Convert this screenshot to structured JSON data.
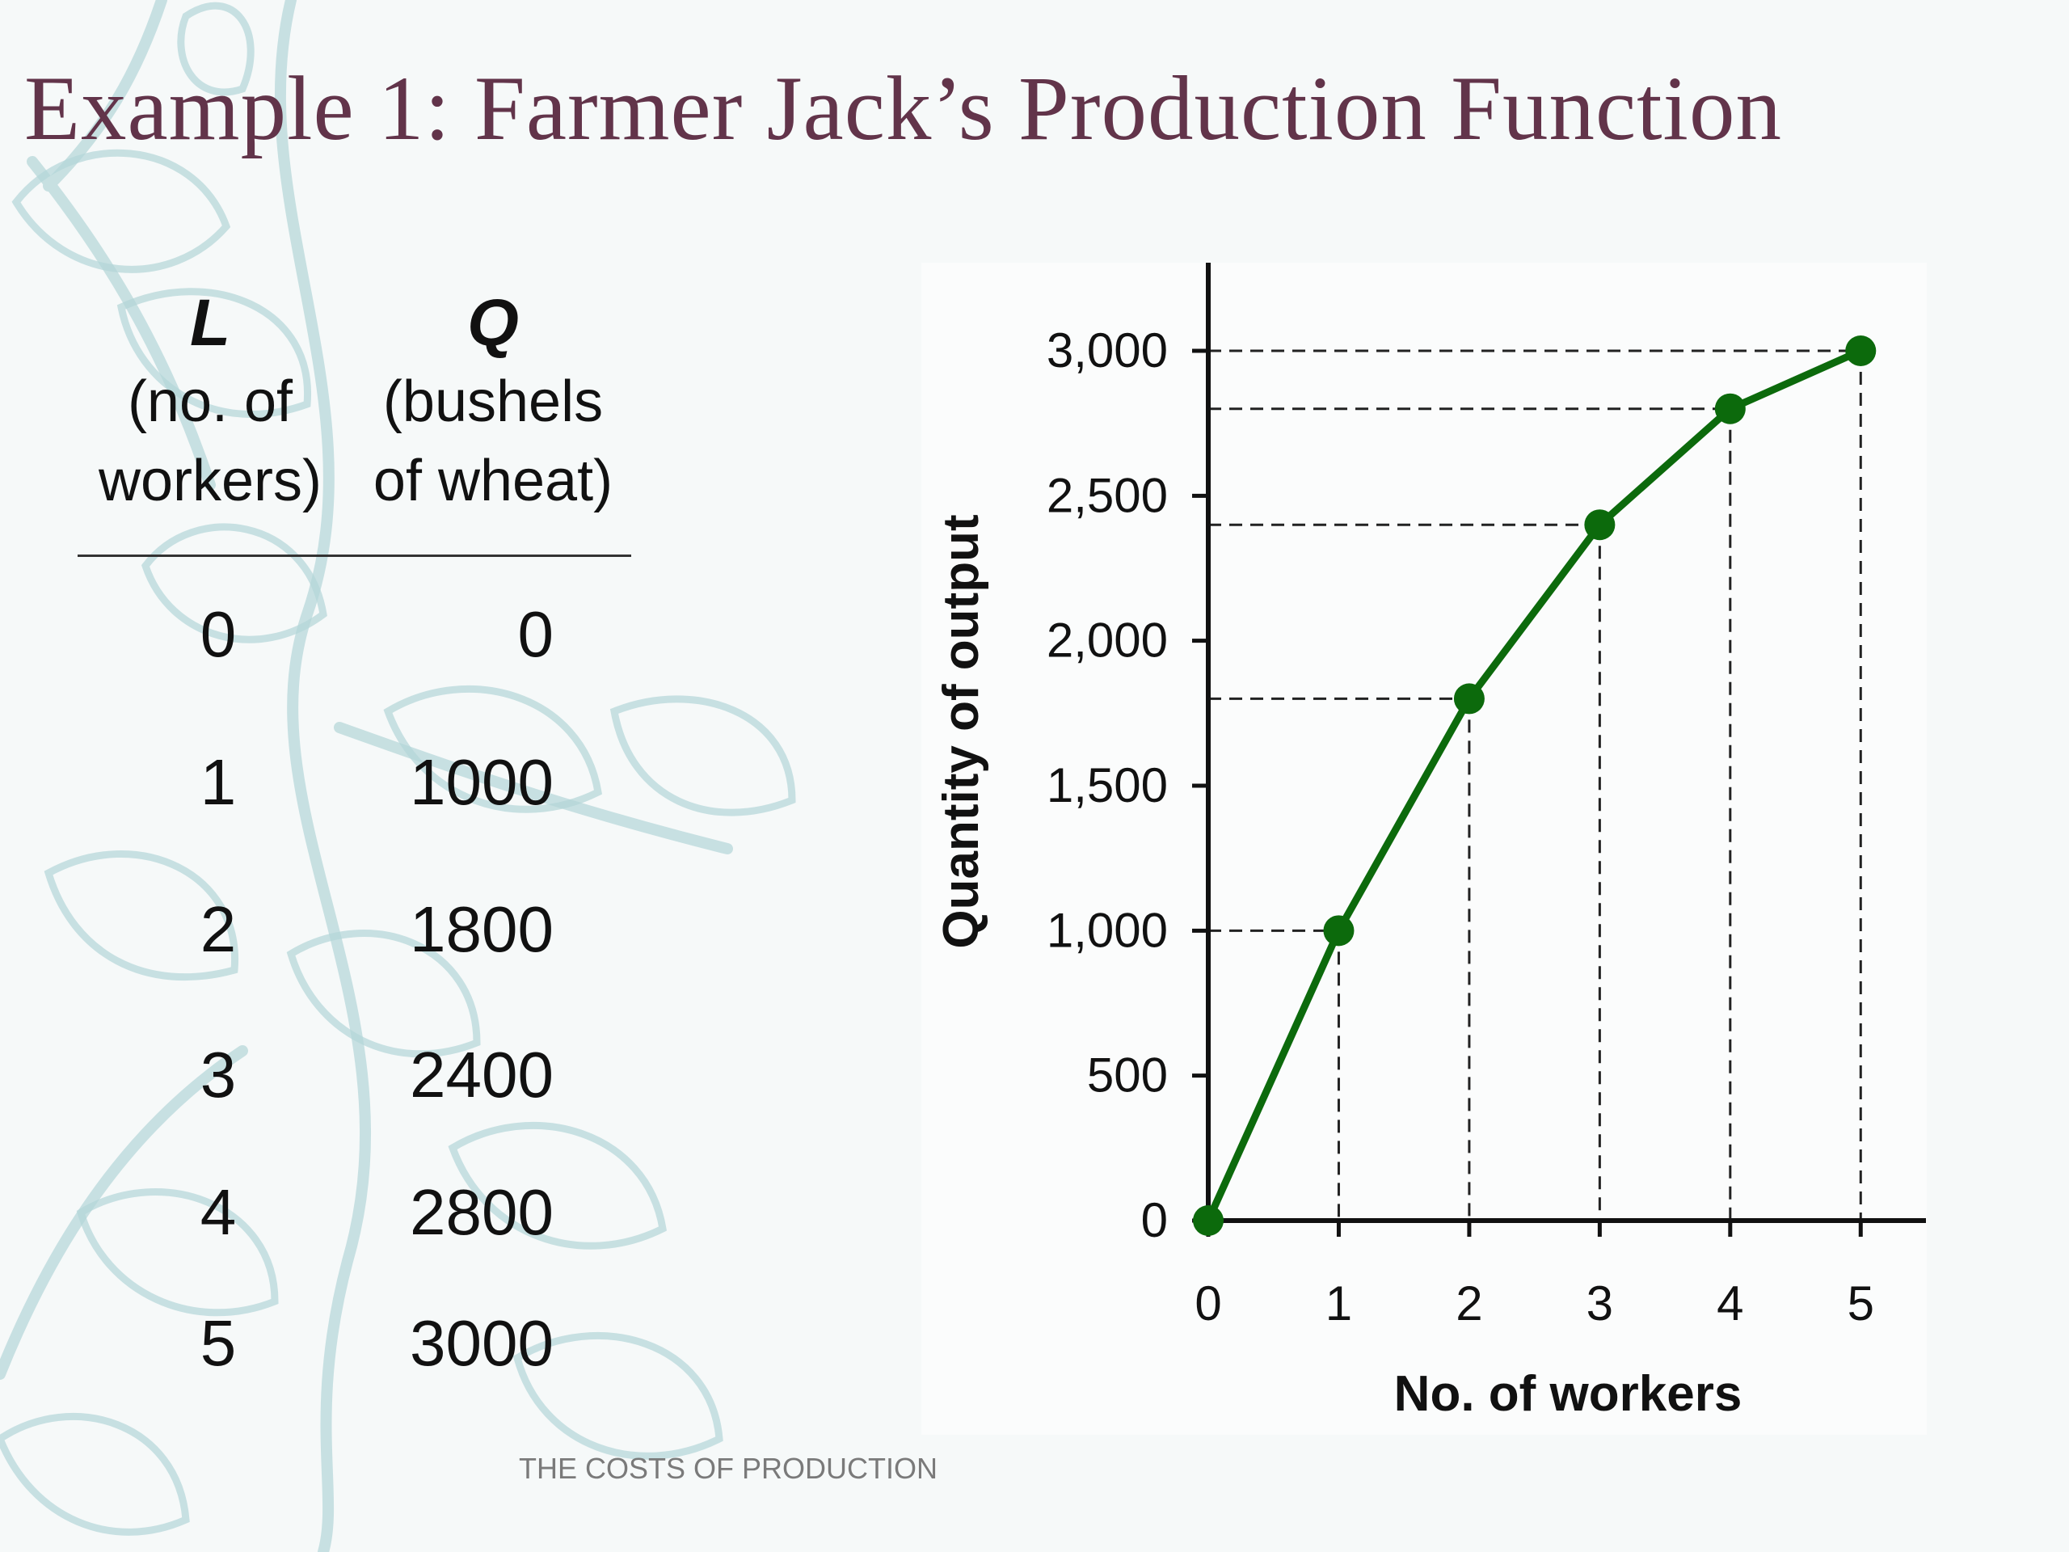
{
  "title": "Example 1:  Farmer Jack’s Production Function",
  "footer": "THE COSTS OF PRODUCTION",
  "colors": {
    "title": "#62344a",
    "series": "#0c6a0c",
    "background_art": "#b4d6d8"
  },
  "background": {
    "decoration": "leaf-pattern"
  },
  "table": {
    "headers": [
      {
        "symbol": "L",
        "line1": "(no. of",
        "line2": "workers)"
      },
      {
        "symbol": "Q",
        "line1": "(bushels",
        "line2": "of wheat)"
      }
    ],
    "rows": [
      {
        "L": "0",
        "Q": "0"
      },
      {
        "L": "1",
        "Q": "1000"
      },
      {
        "L": "2",
        "Q": "1800"
      },
      {
        "L": "3",
        "Q": "2400"
      },
      {
        "L": "4",
        "Q": "2800"
      },
      {
        "L": "5",
        "Q": "3000"
      }
    ]
  },
  "chart_data": {
    "type": "line",
    "x": [
      0,
      1,
      2,
      3,
      4,
      5
    ],
    "series": [
      {
        "values": [
          0,
          1000,
          1800,
          2400,
          2800,
          3000
        ]
      }
    ],
    "xlabel": "No. of workers",
    "ylabel": "Quantity of output",
    "xlim": [
      0,
      5.5
    ],
    "ylim": [
      0,
      3000
    ],
    "xticks": [
      0,
      1,
      2,
      3,
      4,
      5
    ],
    "xtick_labels": [
      "0",
      "1",
      "2",
      "3",
      "4",
      "5"
    ],
    "yticks": [
      0,
      500,
      1000,
      1500,
      2000,
      2500,
      3000
    ],
    "ytick_labels": [
      "0",
      "500",
      "1,000",
      "1,500",
      "2,000",
      "2,500",
      "3,000"
    ],
    "dashed_guides": true,
    "markers": true,
    "grid": false,
    "legend": false
  }
}
